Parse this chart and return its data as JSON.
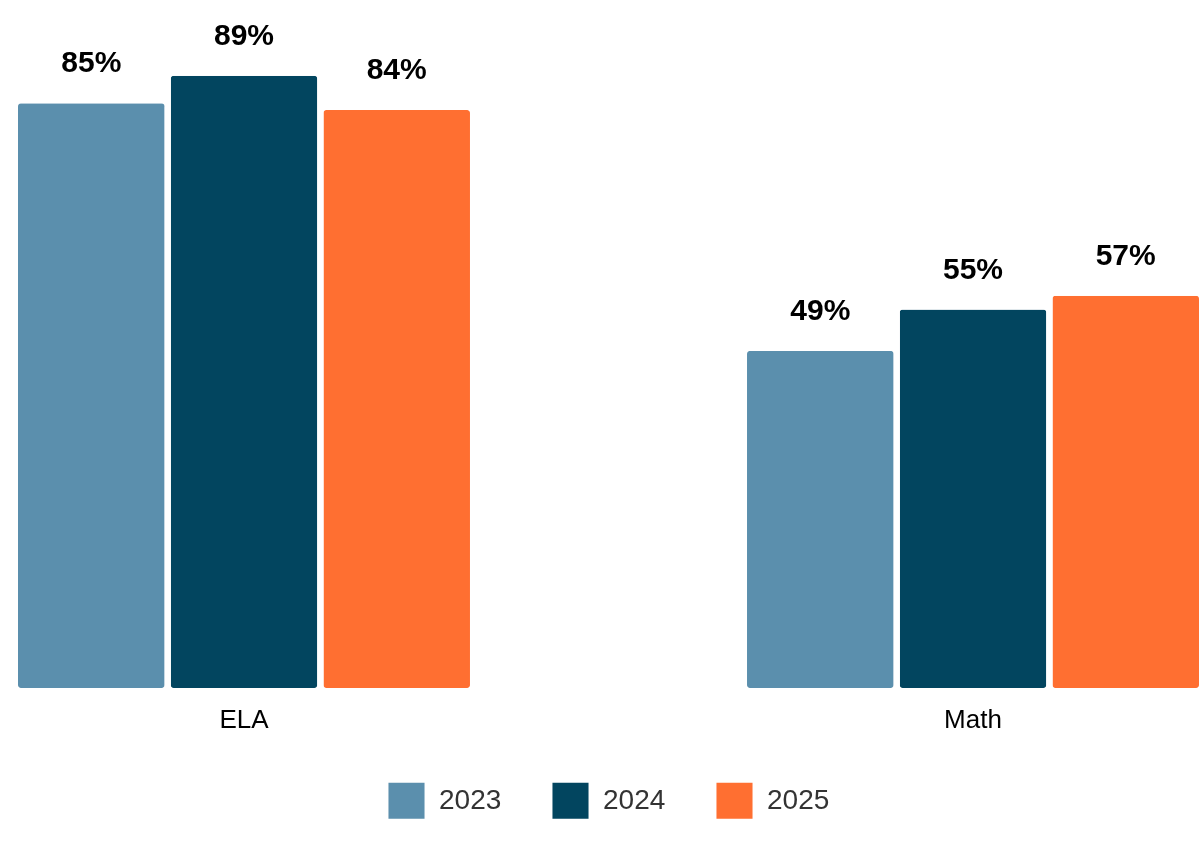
{
  "chart_data": {
    "type": "bar",
    "categories": [
      "ELA",
      "Math"
    ],
    "series": [
      {
        "name": "2023",
        "color": "#5b8fad",
        "values": [
          85,
          49
        ],
        "value_labels": [
          "85%",
          "49%"
        ]
      },
      {
        "name": "2024",
        "color": "#02455f",
        "values": [
          89,
          55
        ],
        "value_labels": [
          "89%",
          "55%"
        ]
      },
      {
        "name": "2025",
        "color": "#ff6f31",
        "values": [
          84,
          57
        ],
        "value_labels": [
          "84%",
          "57%"
        ]
      }
    ],
    "legend": "bottom",
    "grid": false
  }
}
